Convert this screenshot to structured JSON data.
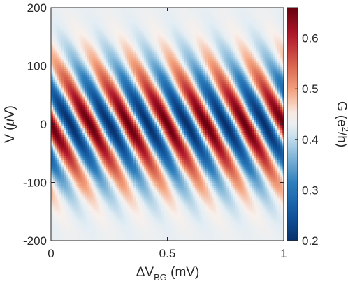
{
  "chart_data": {
    "type": "heatmap",
    "title": "",
    "x_axis": {
      "label_main": "ΔV",
      "label_sub": "BG",
      "label_unit": " (mV)",
      "range": [
        0,
        1
      ],
      "ticks": [
        0,
        0.5,
        1
      ],
      "tick_labels": [
        "0",
        "0.5",
        "1"
      ]
    },
    "y_axis": {
      "label_pre": "V (",
      "label_mu": "μ",
      "label_post": "V)",
      "range": [
        -200,
        200
      ],
      "ticks": [
        -200,
        -100,
        0,
        100,
        200
      ],
      "tick_labels": [
        "-200",
        "-100",
        "0",
        "100",
        "200"
      ]
    },
    "colorbar": {
      "label_pre": "G (e",
      "label_sup": "2",
      "label_post": "/h)",
      "range": [
        0.2,
        0.66
      ],
      "ticks": [
        0.2,
        0.3,
        0.4,
        0.5,
        0.6
      ],
      "tick_labels": [
        "0.2",
        "0.3",
        "0.4",
        "0.5",
        "0.6"
      ],
      "colormap": "red-white-blue diverging",
      "low_color": "#08306b",
      "mid_color": "#f7f7f7",
      "high_color": "#67000d"
    },
    "field": {
      "description_of_pattern": "diagonal conductance oscillations (Fabry-Perot fringes)",
      "baseline": 0.43,
      "amplitude": 0.23,
      "fringe_period_mV": 0.1667,
      "fringe_slope_mV_per_uV": 0.00133,
      "envelope_sigma_uV": 70,
      "fringe_count": 6,
      "min_value": 0.2,
      "max_value": 0.66
    }
  }
}
